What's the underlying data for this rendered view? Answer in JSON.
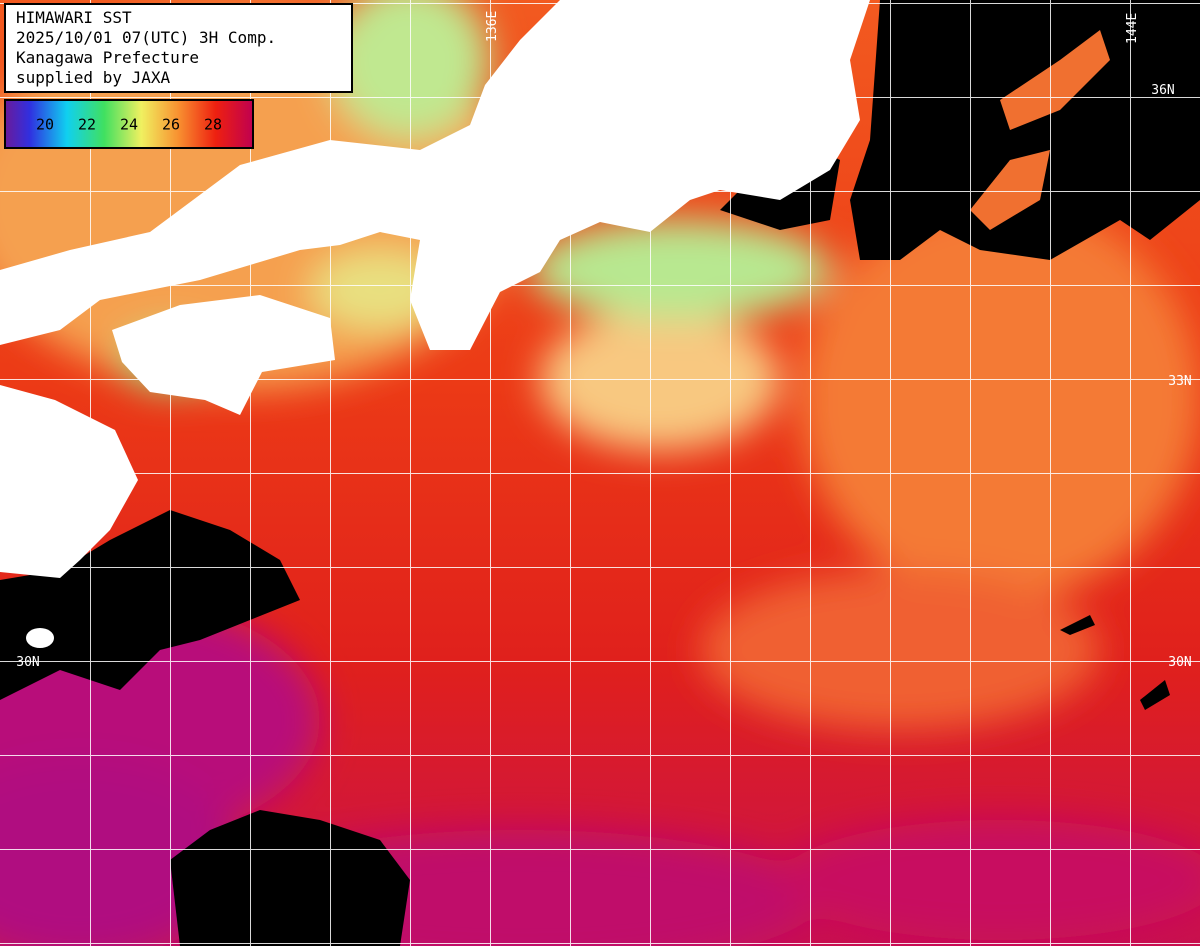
{
  "title_box": {
    "lines": [
      "HIMAWARI SST",
      "2025/10/01 07(UTC) 3H Comp.",
      "Kanagawa Prefecture",
      "supplied by JAXA"
    ]
  },
  "colorbar": {
    "ticks": [
      20,
      22,
      24,
      26,
      28
    ]
  },
  "grid_labels": {
    "latitude_right": [
      "36N",
      "33N",
      "30N"
    ],
    "latitude_left": [
      "30N"
    ],
    "longitude_top": [
      "136E",
      "144E"
    ]
  }
}
